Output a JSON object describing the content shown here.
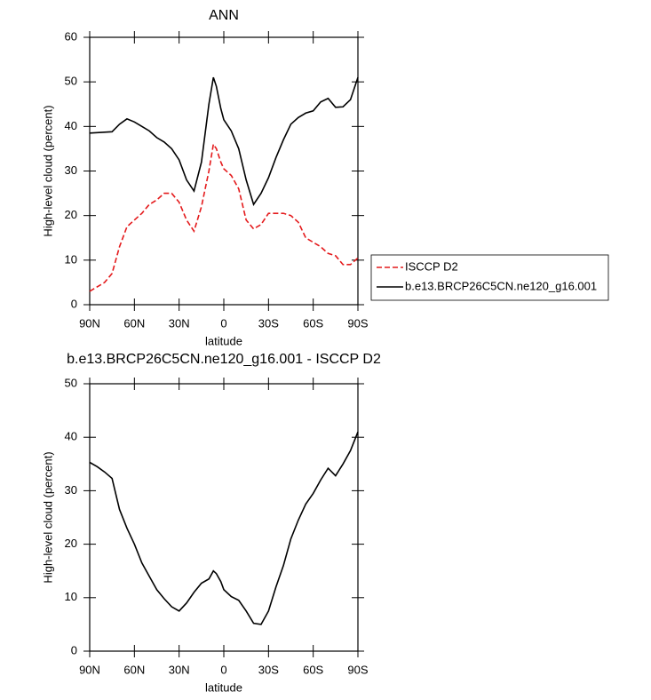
{
  "chart_data": [
    {
      "type": "line",
      "title": "ANN",
      "xlabel": "latitude",
      "ylabel": "High-level cloud (percent)",
      "x": [
        90,
        85,
        80,
        75,
        70,
        65,
        60,
        55,
        50,
        45,
        40,
        35,
        30,
        25,
        20,
        15,
        10,
        7,
        5,
        2,
        0,
        -5,
        -10,
        -15,
        -20,
        -25,
        -30,
        -35,
        -40,
        -45,
        -50,
        -55,
        -60,
        -65,
        -70,
        -75,
        -80,
        -85,
        -90
      ],
      "series": [
        {
          "name": "ISCCP D2",
          "color": "#e41a1c",
          "line_style": "dashed",
          "values": [
            3,
            4,
            5,
            7,
            13,
            17.5,
            19,
            20.5,
            22.5,
            23.5,
            25,
            25,
            23,
            19,
            16.5,
            22,
            30,
            36,
            35,
            32,
            30.5,
            29,
            26,
            19,
            17,
            18,
            20.5,
            20.5,
            20.5,
            20,
            18.5,
            15,
            14,
            13,
            11.5,
            11,
            9,
            9,
            10.5
          ]
        },
        {
          "name": "b.e13.BRCP26C5CN.ne120_g16.001",
          "color": "#000000",
          "line_style": "solid",
          "values": [
            38.5,
            38.6,
            38.7,
            38.8,
            40.5,
            41.7,
            41,
            40,
            39,
            37.5,
            36.5,
            35,
            32.5,
            28,
            25.5,
            32,
            45,
            51,
            49,
            44,
            41.5,
            39,
            35,
            28,
            22.5,
            25,
            28.5,
            33,
            37,
            40.5,
            42,
            43,
            43.5,
            45.5,
            46.3,
            44.3,
            44.4,
            46,
            51
          ]
        }
      ],
      "xlim": [
        90,
        -90
      ],
      "xticks": [
        {
          "value": 90,
          "label": "90N"
        },
        {
          "value": 60,
          "label": "60N"
        },
        {
          "value": 30,
          "label": "30N"
        },
        0,
        {
          "value": -30,
          "label": "30S"
        },
        {
          "value": -60,
          "label": "60S"
        },
        {
          "value": -90,
          "label": "90S"
        }
      ],
      "ylim": [
        0,
        60
      ],
      "yticks": [
        0,
        10,
        20,
        30,
        40,
        50,
        60
      ],
      "legend": "outside-right"
    },
    {
      "type": "line",
      "title": "b.e13.BRCP26C5CN.ne120_g16.001 - ISCCP D2",
      "xlabel": "latitude",
      "ylabel": "High-level cloud (percent)",
      "x": [
        90,
        85,
        80,
        75,
        70,
        65,
        60,
        55,
        50,
        45,
        40,
        35,
        30,
        25,
        20,
        15,
        10,
        7,
        5,
        2,
        0,
        -5,
        -10,
        -15,
        -20,
        -25,
        -30,
        -35,
        -40,
        -45,
        -50,
        -55,
        -60,
        -65,
        -70,
        -75,
        -80,
        -85,
        -90
      ],
      "color": "#000000",
      "values": [
        35.3,
        34.5,
        33.5,
        32.3,
        26.5,
        23,
        20,
        16.5,
        14,
        11.5,
        9.8,
        8.3,
        7.5,
        9,
        11,
        12.7,
        13.5,
        15,
        14.5,
        13,
        11.5,
        10.2,
        9.5,
        7.5,
        5.2,
        5,
        7.5,
        12,
        16,
        21,
        24.5,
        27.5,
        29.5,
        32,
        34.2,
        32.8,
        35,
        37.5,
        41
      ],
      "xlim": [
        90,
        -90
      ],
      "xticks": [
        {
          "value": 90,
          "label": "90N"
        },
        {
          "value": 60,
          "label": "60N"
        },
        {
          "value": 30,
          "label": "30N"
        },
        0,
        {
          "value": -30,
          "label": "30S"
        },
        {
          "value": -60,
          "label": "60S"
        },
        {
          "value": -90,
          "label": "90S"
        }
      ],
      "ylim": [
        0,
        50
      ],
      "yticks": [
        0,
        10,
        20,
        30,
        40,
        50
      ]
    }
  ]
}
